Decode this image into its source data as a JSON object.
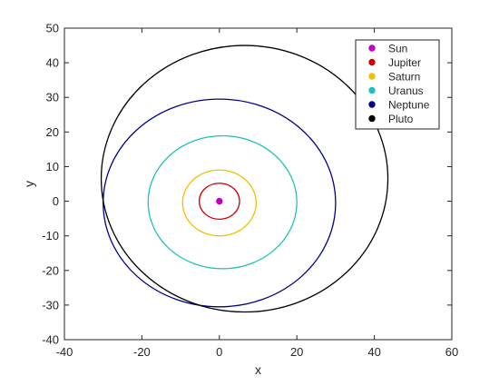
{
  "chart_data": {
    "type": "line",
    "title": "",
    "xlabel": "x",
    "ylabel": "y",
    "xlim": [
      -40,
      60
    ],
    "ylim": [
      -40,
      50
    ],
    "xticks": [
      -40,
      -20,
      0,
      20,
      40,
      60
    ],
    "yticks": [
      -40,
      -30,
      -20,
      -10,
      0,
      10,
      20,
      30,
      40,
      50
    ],
    "grid": false,
    "legend_position": "top-right",
    "series": [
      {
        "name": "Sun",
        "color": "#c000c0",
        "kind": "point",
        "x": 0,
        "y": 0
      },
      {
        "name": "Jupiter",
        "color": "#d00000",
        "kind": "orbit",
        "center": [
          0,
          0
        ],
        "a": 5.2,
        "b": 5.2
      },
      {
        "name": "Saturn",
        "color": "#f0c000",
        "kind": "orbit",
        "center": [
          0,
          -0.5
        ],
        "a": 9.5,
        "b": 9.5
      },
      {
        "name": "Uranus",
        "color": "#20c0c0",
        "kind": "orbit",
        "center": [
          0.8,
          -0.3
        ],
        "a": 19.2,
        "b": 19.2
      },
      {
        "name": "Neptune",
        "color": "#00008c",
        "kind": "orbit",
        "center": [
          0,
          -0.5
        ],
        "a": 30,
        "b": 30
      },
      {
        "name": "Pluto",
        "color": "#000000",
        "kind": "orbit",
        "center": [
          6.5,
          6.5
        ],
        "a": 37,
        "b": 38.5
      }
    ]
  }
}
